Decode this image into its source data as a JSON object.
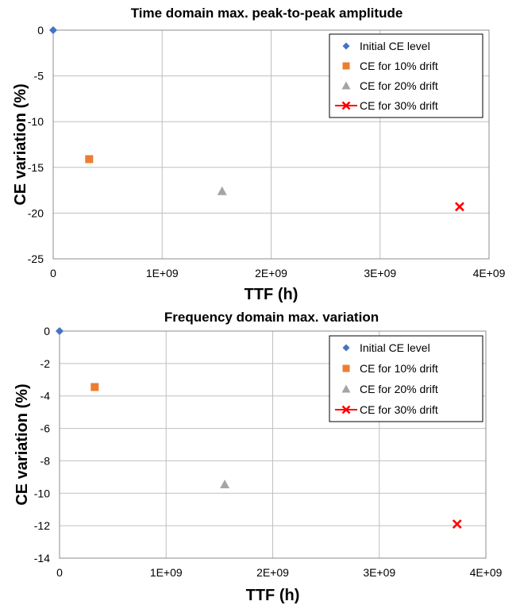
{
  "chart_data": [
    {
      "type": "scatter",
      "title": "Time domain max. peak-to-peak amplitude",
      "xlabel": "TTF (h)",
      "ylabel": "CE variation (%)",
      "xlim": [
        0,
        4000000000
      ],
      "ylim": [
        -25,
        0
      ],
      "x_ticks": [
        "0",
        "1E+09",
        "2E+09",
        "3E+09",
        "4E+09"
      ],
      "y_ticks": [
        "0",
        "-5",
        "-10",
        "-15",
        "-20",
        "-25"
      ],
      "grid": true,
      "legend_position": "top-right",
      "series": [
        {
          "name": "Initial CE level",
          "marker": "diamond",
          "color": "#4472C4",
          "x": [
            0
          ],
          "y": [
            0
          ]
        },
        {
          "name": "CE for 10% drift",
          "marker": "square",
          "color": "#ED7D31",
          "x": [
            330000000
          ],
          "y": [
            -14.1
          ]
        },
        {
          "name": "CE for 20% drift",
          "marker": "triangle",
          "color": "#A5A5A5",
          "x": [
            1550000000
          ],
          "y": [
            -17.6
          ]
        },
        {
          "name": "CE for 30% drift",
          "marker": "x",
          "color": "#FF0000",
          "x": [
            3730000000
          ],
          "y": [
            -19.3
          ]
        }
      ]
    },
    {
      "type": "scatter",
      "title": "Frequency domain max. variation",
      "xlabel": "TTF (h)",
      "ylabel": "CE variation (%)",
      "xlim": [
        0,
        4000000000
      ],
      "ylim": [
        -14,
        0
      ],
      "x_ticks": [
        "0",
        "1E+09",
        "2E+09",
        "3E+09",
        "4E+09"
      ],
      "y_ticks": [
        "0",
        "-2",
        "-4",
        "-6",
        "-8",
        "-10",
        "-12",
        "-14"
      ],
      "grid": true,
      "legend_position": "top-right",
      "series": [
        {
          "name": "Initial CE level",
          "marker": "diamond",
          "color": "#4472C4",
          "x": [
            0
          ],
          "y": [
            0
          ]
        },
        {
          "name": "CE for 10% drift",
          "marker": "square",
          "color": "#ED7D31",
          "x": [
            330000000
          ],
          "y": [
            -3.45
          ]
        },
        {
          "name": "CE for 20% drift",
          "marker": "triangle",
          "color": "#A5A5A5",
          "x": [
            1550000000
          ],
          "y": [
            -9.45
          ]
        },
        {
          "name": "CE for 30% drift",
          "marker": "x",
          "color": "#FF0000",
          "x": [
            3730000000
          ],
          "y": [
            -11.9
          ]
        }
      ]
    }
  ]
}
